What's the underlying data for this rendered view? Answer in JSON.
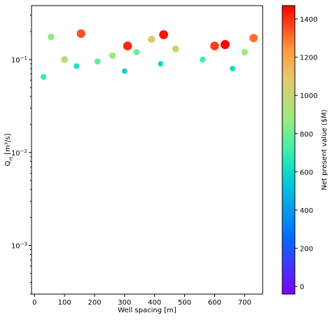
{
  "chart_data": {
    "type": "scatter",
    "xlabel": "Well spacing [m]",
    "ylabel": "Q",
    "ylabel_sub": "rt",
    "ylabel_unit": " [m³/s]",
    "xlim": [
      -10,
      760
    ],
    "ylim": [
      0.0003,
      0.38
    ],
    "y_scale": "log",
    "x_ticks": [
      0,
      100,
      200,
      300,
      400,
      500,
      600,
      700
    ],
    "x_tick_labels": [
      "0",
      "100",
      "200",
      "300",
      "400",
      "500",
      "600",
      "700"
    ],
    "y_ticks": [
      0.001,
      0.01,
      0.1
    ],
    "y_tick_labels": [
      {
        "base": "10",
        "exp": "−3"
      },
      {
        "base": "10",
        "exp": "−2"
      },
      {
        "base": "10",
        "exp": "−1"
      }
    ],
    "colorbar": {
      "label": "Net present value ($M)",
      "range": [
        -40,
        1470
      ],
      "ticks": [
        0,
        200,
        400,
        600,
        800,
        1000,
        1200,
        1400
      ],
      "colormap": "rainbow"
    },
    "grid": false,
    "series": [
      {
        "points": [
          [
            310,
            0.14,
            1410
          ],
          [
            430,
            0.185,
            1440
          ],
          [
            635,
            0.145,
            1460
          ],
          [
            155,
            0.19,
            1350
          ],
          [
            600,
            0.14,
            1380
          ],
          [
            730,
            0.17,
            1300
          ],
          [
            390,
            0.165,
            1050
          ],
          [
            470,
            0.13,
            980
          ],
          [
            100,
            0.1,
            950
          ],
          [
            260,
            0.11,
            900
          ],
          [
            700,
            0.12,
            880
          ],
          [
            55,
            0.175,
            850
          ],
          [
            340,
            0.12,
            800
          ],
          [
            210,
            0.095,
            760
          ],
          [
            560,
            0.1,
            720
          ],
          [
            30,
            0.065,
            700
          ],
          [
            140,
            0.085,
            650
          ],
          [
            660,
            0.08,
            620
          ],
          [
            420,
            0.09,
            600
          ],
          [
            300,
            0.075,
            560
          ]
        ]
      }
    ]
  }
}
